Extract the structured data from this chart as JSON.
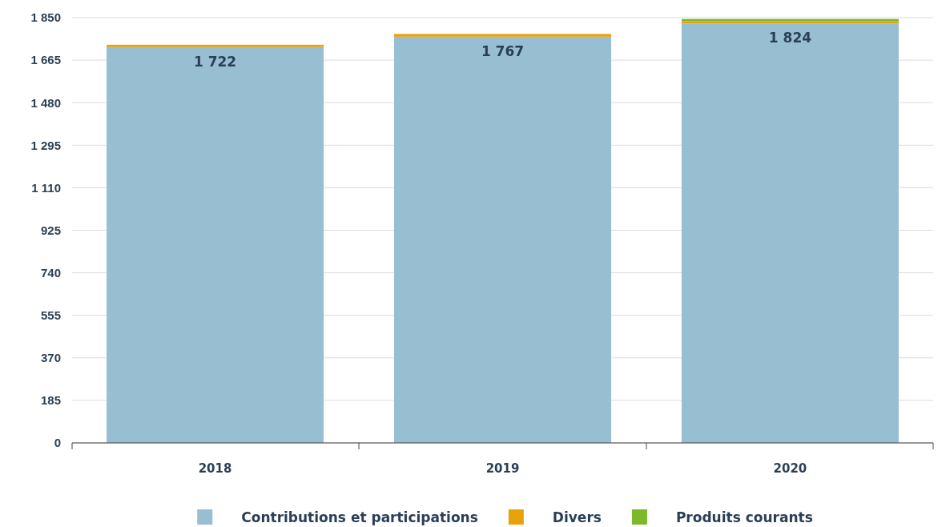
{
  "chart_data": {
    "type": "bar",
    "stacked": true,
    "categories": [
      "2018",
      "2019",
      "2020"
    ],
    "series": [
      {
        "name": "Contributions et participations",
        "color": "#97bfd1",
        "values": [
          1722,
          1767,
          1824
        ],
        "value_labels": [
          "1 722",
          "1 767",
          "1 824"
        ]
      },
      {
        "name": "Divers",
        "color": "#e8a20c",
        "values": [
          10,
          12,
          10
        ]
      },
      {
        "name": "Produits courants",
        "color": "#7ab929",
        "values": [
          0,
          0,
          10
        ]
      }
    ],
    "ylim": [
      0,
      1850
    ],
    "yticks": [
      0,
      185,
      370,
      555,
      740,
      925,
      {
        "value": 1110,
        "label": "1 110"
      },
      {
        "value": 1295,
        "label": "1 295"
      },
      {
        "value": 1480,
        "label": "1 480"
      },
      {
        "value": 1665,
        "label": "1 665"
      },
      {
        "value": 1850,
        "label": "1 850"
      }
    ],
    "grid": "y",
    "legend": "bottom"
  }
}
